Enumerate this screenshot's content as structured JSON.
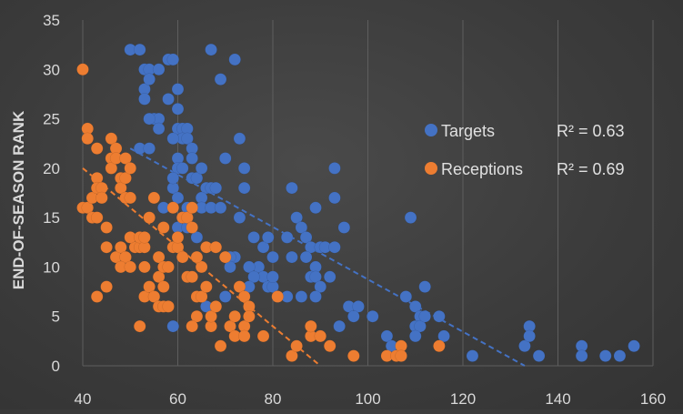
{
  "chart_data": {
    "type": "scatter",
    "title": "",
    "xlabel": "",
    "ylabel": "END-OF-SEASON RANK",
    "xlim": [
      40,
      160
    ],
    "ylim": [
      0,
      35
    ],
    "xticks": [
      40,
      60,
      80,
      100,
      120,
      140,
      160
    ],
    "yticks": [
      0,
      5,
      10,
      15,
      20,
      25,
      30,
      35
    ],
    "grid": "vertical",
    "legend_position": "right",
    "colors": {
      "Targets": "#4472c4",
      "Receptions": "#ed7d31",
      "background": "#404040",
      "grid": "#5e5e5e",
      "text": "#d9d9d9"
    },
    "series": [
      {
        "name": "Targets",
        "color": "#4472c4",
        "r2_label": "R² = 0.63",
        "trendline": {
          "x": [
            50,
            133
          ],
          "y": [
            22,
            0
          ]
        },
        "points": [
          [
            50,
            32
          ],
          [
            52,
            32
          ],
          [
            53,
            30
          ],
          [
            54,
            30
          ],
          [
            56,
            30
          ],
          [
            53,
            28
          ],
          [
            53,
            27
          ],
          [
            54,
            29
          ],
          [
            58,
            31
          ],
          [
            59,
            31
          ],
          [
            67,
            32
          ],
          [
            72,
            31
          ],
          [
            69,
            29
          ],
          [
            55,
            25
          ],
          [
            56,
            25
          ],
          [
            54,
            25
          ],
          [
            56,
            24
          ],
          [
            52,
            22
          ],
          [
            54,
            22
          ],
          [
            60,
            28
          ],
          [
            58,
            27
          ],
          [
            60,
            26
          ],
          [
            60,
            24
          ],
          [
            61,
            24
          ],
          [
            62,
            24
          ],
          [
            61,
            23
          ],
          [
            62,
            23
          ],
          [
            63,
            22
          ],
          [
            59,
            23
          ],
          [
            60,
            21
          ],
          [
            60,
            20
          ],
          [
            61,
            20
          ],
          [
            63,
            21
          ],
          [
            63,
            19
          ],
          [
            64,
            19
          ],
          [
            73,
            23
          ],
          [
            70,
            21
          ],
          [
            74,
            20
          ],
          [
            65,
            20
          ],
          [
            59,
            18
          ],
          [
            60,
            17
          ],
          [
            59,
            19
          ],
          [
            66,
            18
          ],
          [
            67,
            18
          ],
          [
            68,
            18
          ],
          [
            65,
            17
          ],
          [
            65,
            16
          ],
          [
            67,
            16
          ],
          [
            69,
            16
          ],
          [
            62,
            16
          ],
          [
            74,
            18
          ],
          [
            73,
            15
          ],
          [
            60,
            14
          ],
          [
            61,
            15
          ],
          [
            62,
            14
          ],
          [
            64,
            13
          ],
          [
            57,
            16
          ],
          [
            84,
            18
          ],
          [
            93,
            20
          ],
          [
            93,
            17
          ],
          [
            76,
            13
          ],
          [
            78,
            12
          ],
          [
            79,
            13
          ],
          [
            80,
            11
          ],
          [
            77,
            10
          ],
          [
            75,
            10
          ],
          [
            72,
            11
          ],
          [
            71,
            11
          ],
          [
            71,
            10
          ],
          [
            78,
            9
          ],
          [
            76,
            9
          ],
          [
            75,
            8
          ],
          [
            79,
            8
          ],
          [
            80,
            8
          ],
          [
            81,
            7
          ],
          [
            83,
            13
          ],
          [
            84,
            11
          ],
          [
            85,
            15
          ],
          [
            86,
            14
          ],
          [
            87,
            13
          ],
          [
            88,
            12
          ],
          [
            87,
            11
          ],
          [
            89,
            16
          ],
          [
            90,
            12
          ],
          [
            91,
            12
          ],
          [
            89,
            10
          ],
          [
            88,
            9
          ],
          [
            89,
            9
          ],
          [
            90,
            8
          ],
          [
            89,
            7
          ],
          [
            86,
            7
          ],
          [
            83,
            7
          ],
          [
            92,
            9
          ],
          [
            93,
            12
          ],
          [
            95,
            14
          ],
          [
            94,
            4
          ],
          [
            96,
            6
          ],
          [
            98,
            6
          ],
          [
            97,
            5
          ],
          [
            101,
            5
          ],
          [
            104,
            3
          ],
          [
            105,
            2
          ],
          [
            107,
            1
          ],
          [
            108,
            7
          ],
          [
            109,
            15
          ],
          [
            110,
            6
          ],
          [
            111,
            5
          ],
          [
            112,
            8
          ],
          [
            110,
            4
          ],
          [
            111,
            4
          ],
          [
            112,
            5
          ],
          [
            110,
            3
          ],
          [
            115,
            5
          ],
          [
            116,
            3
          ],
          [
            122,
            1
          ],
          [
            133,
            2
          ],
          [
            134,
            4
          ],
          [
            134,
            3
          ],
          [
            136,
            1
          ],
          [
            145,
            2
          ],
          [
            145,
            1
          ],
          [
            150,
            1
          ],
          [
            153,
            1
          ],
          [
            156,
            2
          ],
          [
            59,
            4
          ],
          [
            66,
            6
          ],
          [
            70,
            7
          ],
          [
            80,
            9
          ]
        ]
      },
      {
        "name": "Receptions",
        "color": "#ed7d31",
        "r2_label": "R² = 0.69",
        "trendline": {
          "x": [
            40,
            90
          ],
          "y": [
            20,
            0
          ]
        },
        "points": [
          [
            40,
            30
          ],
          [
            40,
            16
          ],
          [
            41,
            16
          ],
          [
            41,
            24
          ],
          [
            41,
            23
          ],
          [
            43,
            22
          ],
          [
            42,
            15
          ],
          [
            43,
            15
          ],
          [
            42,
            17
          ],
          [
            43,
            19
          ],
          [
            43,
            18
          ],
          [
            44,
            18
          ],
          [
            44,
            17
          ],
          [
            43,
            7
          ],
          [
            45,
            8
          ],
          [
            45,
            12
          ],
          [
            45,
            14
          ],
          [
            46,
            23
          ],
          [
            46,
            21
          ],
          [
            46,
            20
          ],
          [
            47,
            22
          ],
          [
            47,
            21
          ],
          [
            48,
            19
          ],
          [
            48,
            18
          ],
          [
            49,
            19
          ],
          [
            49,
            17
          ],
          [
            50,
            17
          ],
          [
            49,
            21
          ],
          [
            50,
            20
          ],
          [
            47,
            11
          ],
          [
            48,
            12
          ],
          [
            49,
            11
          ],
          [
            48,
            10
          ],
          [
            50,
            10
          ],
          [
            51,
            12
          ],
          [
            50,
            13
          ],
          [
            52,
            12
          ],
          [
            52,
            13
          ],
          [
            53,
            12
          ],
          [
            53,
            13
          ],
          [
            53,
            10
          ],
          [
            52,
            4
          ],
          [
            53,
            7
          ],
          [
            54,
            15
          ],
          [
            54,
            8
          ],
          [
            55,
            7
          ],
          [
            56,
            9
          ],
          [
            56,
            11
          ],
          [
            57,
            10
          ],
          [
            58,
            10
          ],
          [
            57,
            8
          ],
          [
            56,
            6
          ],
          [
            57,
            6
          ],
          [
            58,
            6
          ],
          [
            55,
            17
          ],
          [
            57,
            14
          ],
          [
            59,
            16
          ],
          [
            59,
            12
          ],
          [
            60,
            12
          ],
          [
            60,
            13
          ],
          [
            61,
            15
          ],
          [
            61,
            11
          ],
          [
            62,
            9
          ],
          [
            62,
            15
          ],
          [
            63,
            16
          ],
          [
            63,
            14
          ],
          [
            63,
            9
          ],
          [
            64,
            7
          ],
          [
            64,
            5
          ],
          [
            65,
            10
          ],
          [
            65,
            7
          ],
          [
            66,
            12
          ],
          [
            66,
            8
          ],
          [
            64,
            11
          ],
          [
            63,
            4
          ],
          [
            67,
            4
          ],
          [
            67,
            5
          ],
          [
            68,
            6
          ],
          [
            68,
            12
          ],
          [
            69,
            2
          ],
          [
            70,
            11
          ],
          [
            71,
            4
          ],
          [
            72,
            3
          ],
          [
            72,
            5
          ],
          [
            73,
            8
          ],
          [
            74,
            7
          ],
          [
            74,
            4
          ],
          [
            74,
            3
          ],
          [
            75,
            6
          ],
          [
            75,
            5
          ],
          [
            78,
            3
          ],
          [
            81,
            7
          ],
          [
            84,
            1
          ],
          [
            85,
            2
          ],
          [
            88,
            3
          ],
          [
            88,
            4
          ],
          [
            90,
            3
          ],
          [
            92,
            2
          ],
          [
            97,
            1
          ],
          [
            104,
            1
          ],
          [
            106,
            1
          ],
          [
            107,
            2
          ],
          [
            107,
            1
          ],
          [
            115,
            2
          ]
        ]
      }
    ]
  }
}
